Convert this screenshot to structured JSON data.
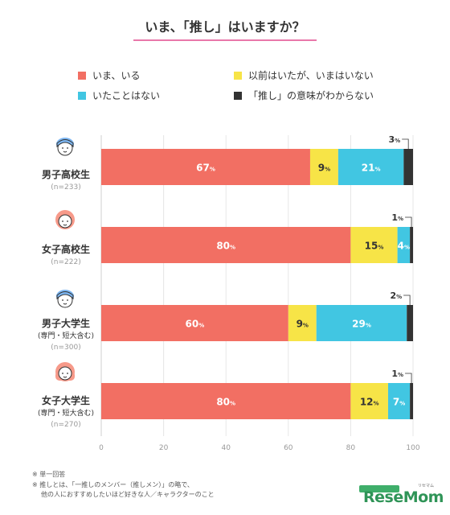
{
  "chart_data": {
    "type": "bar",
    "orientation": "horizontal",
    "stacked": true,
    "title": "いま、「推し」はいますか？",
    "legend": [
      {
        "label": "いま、いる",
        "color": "#f26f63"
      },
      {
        "label": "以前はいたが、いまはいない",
        "color": "#f7e447"
      },
      {
        "label": "いたことはない",
        "color": "#41c6e2"
      },
      {
        "label": "「推し」の意味がわからない",
        "color": "#333333"
      }
    ],
    "categories": [
      {
        "name": "男子高校生",
        "sub": "",
        "n": "(n=233)",
        "icon": "boy-icon"
      },
      {
        "name": "女子高校生",
        "sub": "",
        "n": "(n=222)",
        "icon": "girl-icon"
      },
      {
        "name": "男子大学生",
        "sub": "(専門・短大含む)",
        "n": "(n=300)",
        "icon": "boy-icon"
      },
      {
        "name": "女子大学生",
        "sub": "(専門・短大含む)",
        "n": "(n=270)",
        "icon": "girl-long-hair-icon"
      }
    ],
    "series": [
      {
        "name": "いま、いる",
        "values": [
          67,
          80,
          60,
          80
        ]
      },
      {
        "name": "以前はいたが、いまはいない",
        "values": [
          9,
          15,
          9,
          12
        ]
      },
      {
        "name": "いたことはない",
        "values": [
          21,
          4,
          29,
          7
        ]
      },
      {
        "name": "「推し」の意味がわからない",
        "values": [
          3,
          1,
          2,
          1
        ]
      }
    ],
    "value_suffix": "%",
    "xlim": [
      0,
      100
    ],
    "xticks": [
      0,
      20,
      40,
      60,
      80,
      100
    ],
    "legend_position": "top"
  },
  "notes": [
    "※ 単一回答",
    "※ 推しとは、「一推しのメンバー（推しメン）」の略で、",
    "他の人におすすめしたいほど好きな人／キャラクターのこと"
  ],
  "watermark": {
    "brand": "ReseMom",
    "ruby": "リセマム"
  },
  "colors": {
    "accent": "#f26f63",
    "title_underline": "#e24b8e",
    "icon_boy": "#7cb6f2",
    "icon_girl": "#f79a8a"
  }
}
